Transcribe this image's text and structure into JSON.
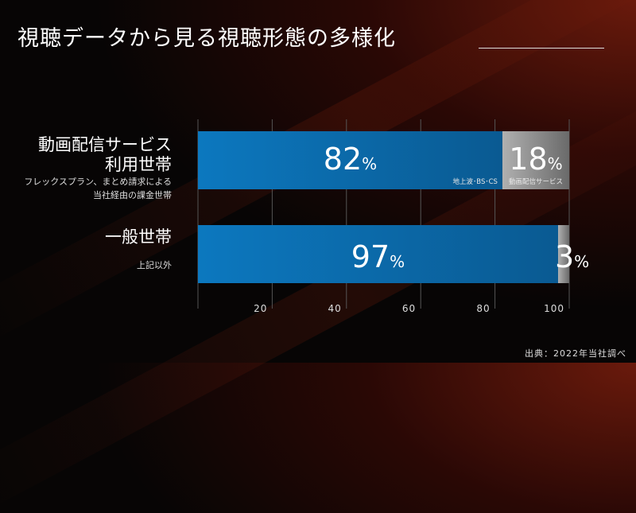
{
  "title": "視聴データから見る視聴形態の多様化",
  "source": "出典：2022年当社調べ",
  "colors": {
    "primary": "#0b6fb0",
    "secondary": "#8c8c8c"
  },
  "chart_data": {
    "type": "bar",
    "orientation": "horizontal",
    "stacked": true,
    "categories": [
      {
        "label": "動画配信サービス利用世帯",
        "label_lines": [
          "動画配信サービス",
          "利用世帯"
        ],
        "sublabel_lines": [
          "フレックスプラン、まとめ請求による",
          "当社経由の課金世帯"
        ]
      },
      {
        "label": "一般世帯",
        "label_lines": [
          "一般世帯"
        ],
        "sublabel_lines": [
          "上記以外"
        ]
      }
    ],
    "series": [
      {
        "name": "地上波・BS・CS",
        "values": [
          82,
          97
        ],
        "color": "#0b6fb0"
      },
      {
        "name": "動画配信サービス",
        "values": [
          18,
          3
        ],
        "color": "#8c8c8c"
      }
    ],
    "series_labels": [
      [
        "地上波･BS･CS",
        "動画配信サービス"
      ],
      [
        "",
        ""
      ]
    ],
    "xlim": [
      0,
      100
    ],
    "xticks": [
      20,
      40,
      60,
      80,
      100
    ],
    "grid": true,
    "unit": "%"
  }
}
